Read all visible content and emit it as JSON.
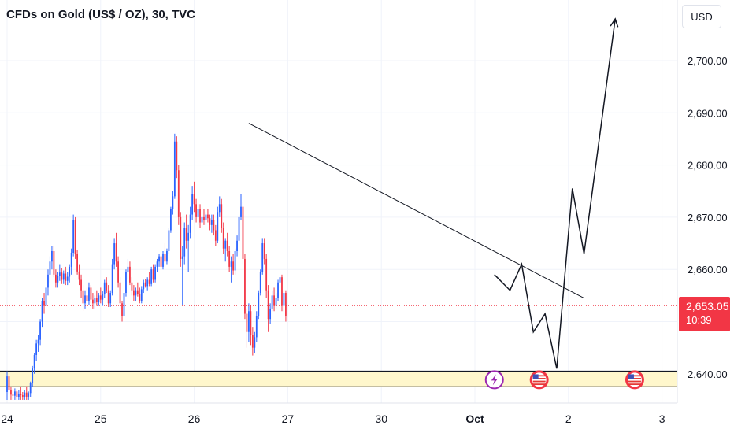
{
  "header": {
    "title": "CFDs on Gold (US$ / OZ), 30, TVC"
  },
  "currency": "USD",
  "last_price": {
    "value": "2,653.05",
    "countdown": "10:39",
    "numeric": 2653.05
  },
  "colors": {
    "up": "#2962ff",
    "down": "#f23645",
    "zone_fill": "#fff7cc",
    "line": "#131722"
  },
  "chart_data": {
    "type": "candlestick",
    "title": "CFDs on Gold (US$ / OZ), 30, TVC",
    "ylim": [
      2635,
      2712
    ],
    "y_ticks": [
      {
        "value": 2700,
        "label": "2,700.00"
      },
      {
        "value": 2690,
        "label": "2,690.00"
      },
      {
        "value": 2680,
        "label": "2,680.00"
      },
      {
        "value": 2670,
        "label": "2,670.00"
      },
      {
        "value": 2660,
        "label": "2,660.00"
      },
      {
        "value": 2640,
        "label": "2,640.00"
      }
    ],
    "x_ticks": [
      {
        "bar": 0,
        "label": "24",
        "bold": false
      },
      {
        "bar": 48,
        "label": "25",
        "bold": false
      },
      {
        "bar": 96,
        "label": "26",
        "bold": false
      },
      {
        "bar": 144,
        "label": "27",
        "bold": false
      },
      {
        "bar": 192,
        "label": "30",
        "bold": false
      },
      {
        "bar": 240,
        "label": "Oct",
        "bold": true
      },
      {
        "bar": 288,
        "label": "2",
        "bold": false
      },
      {
        "bar": 336,
        "label": "3",
        "bold": false
      }
    ],
    "candles": [
      [
        2636.5,
        2640.5,
        2635.0,
        2639.5
      ],
      [
        2639.5,
        2640.0,
        2636.0,
        2636.8
      ],
      [
        2636.8,
        2637.5,
        2635.0,
        2636.0
      ],
      [
        2636.0,
        2637.0,
        2635.0,
        2635.8
      ],
      [
        2635.8,
        2637.2,
        2635.0,
        2636.6
      ],
      [
        2636.6,
        2637.0,
        2635.0,
        2635.6
      ],
      [
        2635.6,
        2636.8,
        2635.0,
        2636.2
      ],
      [
        2636.2,
        2637.5,
        2635.0,
        2635.9
      ],
      [
        2635.9,
        2636.5,
        2635.0,
        2635.6
      ],
      [
        2635.6,
        2636.8,
        2635.0,
        2636.4
      ],
      [
        2636.4,
        2637.6,
        2635.0,
        2635.6
      ],
      [
        2635.6,
        2636.6,
        2635.0,
        2636.3
      ],
      [
        2636.3,
        2638.5,
        2635.6,
        2638.2
      ],
      [
        2638.2,
        2641.5,
        2637.5,
        2641.0
      ],
      [
        2641.0,
        2644.0,
        2640.0,
        2643.6
      ],
      [
        2643.6,
        2646.5,
        2642.5,
        2645.8
      ],
      [
        2645.8,
        2647.5,
        2644.2,
        2646.5
      ],
      [
        2646.5,
        2650.5,
        2645.5,
        2650.0
      ],
      [
        2650.0,
        2654.5,
        2649.0,
        2654.0
      ],
      [
        2654.0,
        2655.5,
        2651.5,
        2653.0
      ],
      [
        2653.0,
        2657.0,
        2652.5,
        2656.5
      ],
      [
        2656.5,
        2660.0,
        2655.0,
        2659.0
      ],
      [
        2659.0,
        2662.5,
        2657.5,
        2661.5
      ],
      [
        2661.5,
        2664.5,
        2660.0,
        2663.5
      ],
      [
        2663.5,
        2664.5,
        2658.5,
        2659.0
      ],
      [
        2659.0,
        2660.0,
        2656.5,
        2657.5
      ],
      [
        2657.5,
        2659.5,
        2656.5,
        2658.8
      ],
      [
        2658.8,
        2661.0,
        2657.8,
        2659.4
      ],
      [
        2659.4,
        2660.2,
        2657.2,
        2658.0
      ],
      [
        2658.0,
        2659.8,
        2657.2,
        2659.2
      ],
      [
        2659.2,
        2660.5,
        2657.0,
        2657.8
      ],
      [
        2657.8,
        2659.5,
        2657.0,
        2658.6
      ],
      [
        2658.6,
        2661.0,
        2657.5,
        2660.5
      ],
      [
        2660.5,
        2664.0,
        2659.0,
        2663.2
      ],
      [
        2663.2,
        2670.5,
        2662.5,
        2669.5
      ],
      [
        2669.5,
        2670.0,
        2662.0,
        2663.0
      ],
      [
        2663.0,
        2663.8,
        2659.0,
        2659.6
      ],
      [
        2659.6,
        2661.0,
        2657.0,
        2658.0
      ],
      [
        2658.0,
        2659.0,
        2654.5,
        2656.0
      ],
      [
        2656.0,
        2657.0,
        2652.0,
        2653.5
      ],
      [
        2653.5,
        2656.0,
        2652.5,
        2655.0
      ],
      [
        2655.0,
        2656.5,
        2653.0,
        2654.0
      ],
      [
        2654.0,
        2657.5,
        2653.2,
        2656.5
      ],
      [
        2656.5,
        2657.0,
        2653.5,
        2654.2
      ],
      [
        2654.2,
        2655.5,
        2652.5,
        2653.5
      ],
      [
        2653.5,
        2655.0,
        2652.5,
        2654.5
      ],
      [
        2654.5,
        2656.0,
        2653.0,
        2653.8
      ],
      [
        2653.8,
        2655.5,
        2653.0,
        2655.0
      ],
      [
        2655.0,
        2656.5,
        2653.5,
        2654.2
      ],
      [
        2654.2,
        2655.8,
        2653.0,
        2655.2
      ],
      [
        2655.2,
        2658.0,
        2654.5,
        2657.5
      ],
      [
        2657.5,
        2658.5,
        2655.5,
        2656.0
      ],
      [
        2656.0,
        2657.0,
        2652.8,
        2653.5
      ],
      [
        2653.5,
        2656.0,
        2652.8,
        2655.5
      ],
      [
        2655.5,
        2662.0,
        2655.0,
        2661.0
      ],
      [
        2661.0,
        2666.0,
        2660.0,
        2665.0
      ],
      [
        2665.0,
        2667.0,
        2660.5,
        2661.5
      ],
      [
        2661.5,
        2662.5,
        2656.5,
        2657.5
      ],
      [
        2657.5,
        2658.5,
        2652.5,
        2653.5
      ],
      [
        2653.5,
        2654.0,
        2650.0,
        2651.0
      ],
      [
        2651.0,
        2656.0,
        2650.5,
        2655.5
      ],
      [
        2655.5,
        2660.0,
        2654.8,
        2659.5
      ],
      [
        2659.5,
        2662.0,
        2658.0,
        2660.5
      ],
      [
        2660.5,
        2661.5,
        2657.0,
        2657.5
      ],
      [
        2657.5,
        2658.5,
        2655.0,
        2656.0
      ],
      [
        2656.0,
        2657.0,
        2654.0,
        2655.0
      ],
      [
        2655.0,
        2656.5,
        2654.0,
        2656.0
      ],
      [
        2656.0,
        2657.5,
        2654.8,
        2655.2
      ],
      [
        2655.2,
        2656.5,
        2653.5,
        2654.0
      ],
      [
        2654.0,
        2656.8,
        2653.5,
        2656.2
      ],
      [
        2656.2,
        2658.0,
        2655.5,
        2657.5
      ],
      [
        2657.5,
        2658.2,
        2656.5,
        2656.8
      ],
      [
        2656.8,
        2658.5,
        2656.0,
        2658.0
      ],
      [
        2658.0,
        2659.5,
        2656.8,
        2657.2
      ],
      [
        2657.2,
        2660.5,
        2656.8,
        2660.0
      ],
      [
        2660.0,
        2661.0,
        2657.5,
        2658.0
      ],
      [
        2658.0,
        2661.0,
        2657.5,
        2660.5
      ],
      [
        2660.5,
        2662.0,
        2659.5,
        2661.5
      ],
      [
        2661.5,
        2663.0,
        2660.5,
        2662.5
      ],
      [
        2662.5,
        2663.0,
        2660.0,
        2660.5
      ],
      [
        2660.5,
        2663.5,
        2660.0,
        2663.0
      ],
      [
        2663.0,
        2665.0,
        2660.5,
        2661.5
      ],
      [
        2661.5,
        2664.0,
        2661.0,
        2663.5
      ],
      [
        2663.5,
        2668.0,
        2663.0,
        2667.5
      ],
      [
        2667.5,
        2672.0,
        2667.0,
        2671.5
      ],
      [
        2671.5,
        2675.0,
        2670.5,
        2674.0
      ],
      [
        2674.0,
        2686.0,
        2673.5,
        2684.5
      ],
      [
        2684.5,
        2685.5,
        2677.5,
        2679.0
      ],
      [
        2679.0,
        2680.0,
        2668.5,
        2670.0
      ],
      [
        2670.0,
        2671.0,
        2660.5,
        2662.0
      ],
      [
        2662.0,
        2664.5,
        2653.0,
        2662.5
      ],
      [
        2662.5,
        2669.0,
        2661.0,
        2668.0
      ],
      [
        2668.0,
        2670.5,
        2664.0,
        2665.5
      ],
      [
        2665.5,
        2668.5,
        2659.5,
        2667.0
      ],
      [
        2667.0,
        2672.0,
        2666.0,
        2670.5
      ],
      [
        2670.5,
        2676.0,
        2669.5,
        2674.5
      ],
      [
        2674.5,
        2676.8,
        2671.0,
        2672.5
      ],
      [
        2672.5,
        2673.5,
        2669.0,
        2670.0
      ],
      [
        2670.0,
        2672.5,
        2668.5,
        2671.5
      ],
      [
        2671.5,
        2672.5,
        2668.0,
        2669.0
      ],
      [
        2669.0,
        2670.5,
        2667.5,
        2670.0
      ],
      [
        2670.0,
        2671.5,
        2668.5,
        2669.5
      ],
      [
        2669.5,
        2671.0,
        2668.5,
        2670.5
      ],
      [
        2670.5,
        2671.5,
        2669.0,
        2669.8
      ],
      [
        2669.8,
        2670.5,
        2667.5,
        2668.5
      ],
      [
        2668.5,
        2670.5,
        2667.0,
        2669.5
      ],
      [
        2669.5,
        2670.5,
        2666.5,
        2667.5
      ],
      [
        2667.5,
        2668.5,
        2664.5,
        2665.5
      ],
      [
        2665.5,
        2672.0,
        2665.0,
        2671.0
      ],
      [
        2671.0,
        2674.0,
        2670.0,
        2672.5
      ],
      [
        2672.5,
        2673.5,
        2667.0,
        2668.0
      ],
      [
        2668.0,
        2669.0,
        2663.0,
        2664.0
      ],
      [
        2664.0,
        2666.0,
        2661.5,
        2665.5
      ],
      [
        2665.5,
        2667.0,
        2662.5,
        2663.5
      ],
      [
        2663.5,
        2664.5,
        2659.5,
        2660.5
      ],
      [
        2660.5,
        2662.5,
        2657.5,
        2661.5
      ],
      [
        2661.5,
        2663.0,
        2659.0,
        2659.8
      ],
      [
        2659.8,
        2664.0,
        2659.0,
        2663.5
      ],
      [
        2663.5,
        2666.5,
        2662.5,
        2665.5
      ],
      [
        2665.5,
        2670.5,
        2665.0,
        2670.0
      ],
      [
        2670.0,
        2674.5,
        2669.5,
        2672.0
      ],
      [
        2672.0,
        2673.0,
        2661.0,
        2662.0
      ],
      [
        2662.0,
        2663.0,
        2650.5,
        2651.5
      ],
      [
        2651.5,
        2652.5,
        2645.0,
        2648.0
      ],
      [
        2648.0,
        2653.5,
        2646.0,
        2652.0
      ],
      [
        2652.0,
        2653.0,
        2645.5,
        2647.5
      ],
      [
        2647.5,
        2649.0,
        2643.5,
        2645.0
      ],
      [
        2645.0,
        2648.0,
        2644.0,
        2647.0
      ],
      [
        2647.0,
        2652.0,
        2646.0,
        2651.0
      ],
      [
        2651.0,
        2656.0,
        2650.5,
        2655.5
      ],
      [
        2655.5,
        2660.0,
        2655.0,
        2659.5
      ],
      [
        2659.5,
        2666.0,
        2659.0,
        2665.0
      ],
      [
        2665.0,
        2666.0,
        2661.0,
        2662.0
      ],
      [
        2662.0,
        2663.0,
        2654.5,
        2656.0
      ],
      [
        2656.0,
        2657.0,
        2648.0,
        2650.5
      ],
      [
        2650.5,
        2653.5,
        2649.5,
        2652.5
      ],
      [
        2652.5,
        2656.0,
        2652.0,
        2655.0
      ],
      [
        2655.0,
        2656.5,
        2652.0,
        2653.0
      ],
      [
        2653.0,
        2655.5,
        2652.5,
        2654.5
      ],
      [
        2654.5,
        2658.0,
        2654.0,
        2657.5
      ],
      [
        2657.5,
        2660.0,
        2657.0,
        2658.5
      ],
      [
        2658.5,
        2659.0,
        2652.0,
        2653.0
      ],
      [
        2653.0,
        2656.0,
        2652.0,
        2655.5
      ],
      [
        2655.5,
        2656.0,
        2650.0,
        2651.0
      ]
    ],
    "candle_start_bar": 0,
    "annotations": {
      "trendline": [
        [
          124,
          2688
        ],
        [
          296,
          2654.5
        ]
      ],
      "projection": [
        [
          250,
          2659
        ],
        [
          258,
          2656
        ],
        [
          264,
          2661
        ],
        [
          270,
          2648
        ],
        [
          276,
          2651.5
        ],
        [
          282,
          2641
        ],
        [
          290,
          2675.5
        ],
        [
          296,
          2663
        ],
        [
          312,
          2708
        ]
      ],
      "zone": [
        2637.5,
        2640.5
      ],
      "event_icons": [
        {
          "bar": 250,
          "kind": "flash"
        },
        {
          "bar": 273,
          "kind": "us-flag"
        },
        {
          "bar": 322,
          "kind": "us-flag"
        }
      ]
    }
  }
}
